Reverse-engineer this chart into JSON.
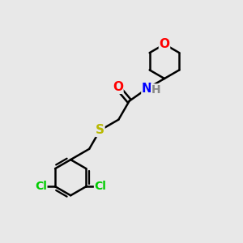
{
  "background_color": "#e8e8e8",
  "bond_color": "#000000",
  "bond_width": 1.8,
  "atom_colors": {
    "O": "#ff0000",
    "N": "#0000ff",
    "S": "#b8b800",
    "Cl": "#00cc00",
    "C": "#000000",
    "H": "#888888"
  },
  "font_size": 10,
  "figsize": [
    3.0,
    3.0
  ],
  "dpi": 100,
  "xlim": [
    0,
    10
  ],
  "ylim": [
    0,
    10
  ]
}
